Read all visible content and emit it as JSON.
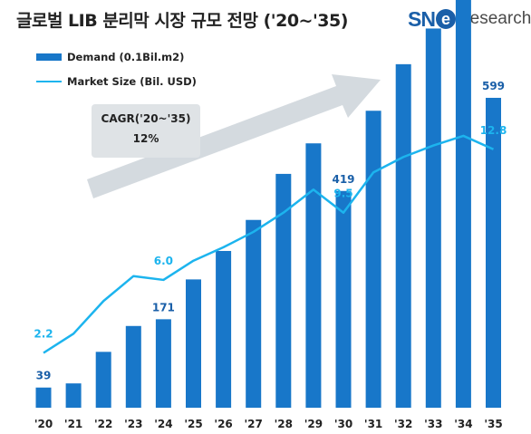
{
  "header": {
    "title": "글로벌 LIB 분리막 시장 규모 전망 ('20~'35)",
    "logo_text_sn": "SN",
    "logo_text_e": "e",
    "logo_text_rest": "Research"
  },
  "legend": {
    "bar_label": "Demand (0.1Bil.m2)",
    "line_label": "Market Size (Bil. USD)"
  },
  "cagr": {
    "label": "CAGR('20~'35)",
    "value": "12%"
  },
  "colors": {
    "bar": "#1877c9",
    "line": "#1cb4ee",
    "bar_label": "#1a5fa8",
    "line_label": "#1cb4ee",
    "arrow": "#cfd6dc"
  },
  "chart_data": {
    "type": "bar",
    "categories": [
      "'20",
      "'21",
      "'22",
      "'23",
      "'24",
      "'25",
      "'26",
      "'27",
      "'28",
      "'29",
      "'30",
      "'31",
      "'32",
      "'33",
      "'34",
      "'35"
    ],
    "series": [
      {
        "name": "Demand (0.1Bil.m2)",
        "type": "bar",
        "values": [
          39,
          47,
          108,
          158,
          171,
          248,
          303,
          363,
          452,
          511,
          419,
          574,
          664,
          733,
          792,
          599
        ]
      },
      {
        "name": "Market Size (Bil. USD)",
        "type": "line",
        "values": [
          2.2,
          3.2,
          4.9,
          6.2,
          6.0,
          7.0,
          7.7,
          8.5,
          9.5,
          10.7,
          9.5,
          11.6,
          12.4,
          13.0,
          13.5,
          12.8
        ]
      }
    ],
    "data_labels": {
      "bar": [
        {
          "index": 0,
          "text": "39"
        },
        {
          "index": 4,
          "text": "171"
        },
        {
          "index": 10,
          "text": "419"
        },
        {
          "index": 15,
          "text": "599"
        }
      ],
      "line": [
        {
          "index": 0,
          "text": "2.2"
        },
        {
          "index": 4,
          "text": "6.0"
        },
        {
          "index": 10,
          "text": "9.5"
        },
        {
          "index": 15,
          "text": "12.8"
        }
      ]
    },
    "legend_position": "top-left",
    "grid": false
  }
}
